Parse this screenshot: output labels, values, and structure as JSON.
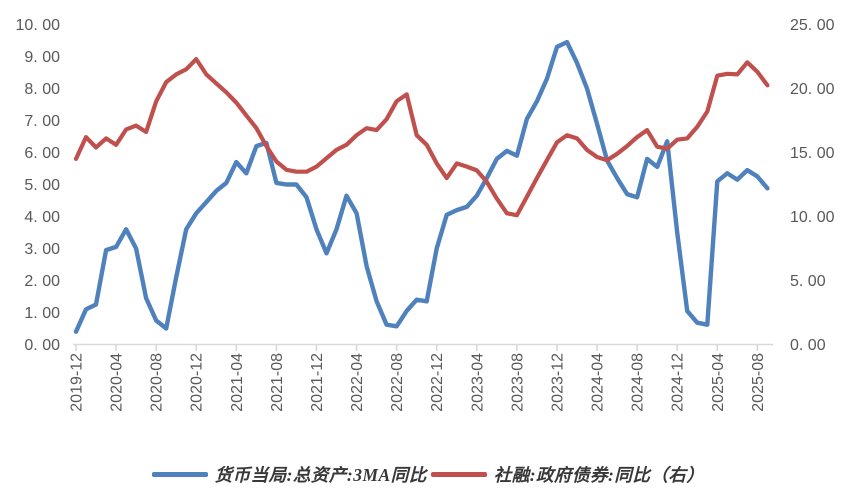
{
  "chart_data": {
    "type": "line",
    "title": "",
    "grid": false,
    "legend_position": "bottom",
    "x": [
      "2019-12",
      "2020-01",
      "2020-02",
      "2020-03",
      "2020-04",
      "2020-05",
      "2020-06",
      "2020-07",
      "2020-08",
      "2020-09",
      "2020-10",
      "2020-11",
      "2020-12",
      "2021-01",
      "2021-02",
      "2021-03",
      "2021-04",
      "2021-05",
      "2021-06",
      "2021-07",
      "2021-08",
      "2021-09",
      "2021-10",
      "2021-11",
      "2021-12",
      "2022-01",
      "2022-02",
      "2022-03",
      "2022-04",
      "2022-05",
      "2022-06",
      "2022-07",
      "2022-08",
      "2022-09",
      "2022-10",
      "2022-11",
      "2022-12",
      "2023-01",
      "2023-02",
      "2023-03",
      "2023-04",
      "2023-05",
      "2023-06",
      "2023-07",
      "2023-08",
      "2023-09",
      "2023-10",
      "2023-11",
      "2023-12",
      "2024-01",
      "2024-02",
      "2024-03",
      "2024-04",
      "2024-05",
      "2024-06",
      "2024-07",
      "2024-08",
      "2024-09",
      "2024-10",
      "2024-11",
      "2024-12",
      "2025-01",
      "2025-02",
      "2025-03",
      "2025-04",
      "2025-05",
      "2025-06",
      "2025-07",
      "2025-08",
      "2025-09"
    ],
    "x_label_every": 4,
    "left_axis": {
      "min": 0,
      "max": 10,
      "step": 1,
      "tick_labels": [
        "0. 00",
        "1. 00",
        "2. 00",
        "3. 00",
        "4. 00",
        "5. 00",
        "6. 00",
        "7. 00",
        "8. 00",
        "9. 00",
        "10. 00"
      ]
    },
    "right_axis": {
      "min": 0,
      "max": 25,
      "step": 5,
      "tick_labels": [
        "0. 00",
        "5. 00",
        "10. 00",
        "15. 00",
        "20. 00",
        "25. 00"
      ]
    },
    "series": [
      {
        "name": "货币当局:总资产:3MA同比",
        "axis": "left",
        "color": "#4F81BD",
        "values": [
          0.4,
          1.1,
          1.25,
          2.95,
          3.05,
          3.6,
          3.0,
          1.45,
          0.75,
          0.5,
          2.1,
          3.6,
          4.1,
          4.45,
          4.8,
          5.05,
          5.7,
          5.35,
          6.2,
          6.3,
          5.05,
          5.0,
          5.0,
          4.6,
          3.6,
          2.85,
          3.6,
          4.65,
          4.1,
          2.45,
          1.35,
          0.62,
          0.57,
          1.05,
          1.4,
          1.35,
          3.0,
          4.05,
          4.2,
          4.3,
          4.65,
          5.2,
          5.8,
          6.05,
          5.9,
          7.05,
          7.6,
          8.3,
          9.3,
          9.45,
          8.8,
          8.0,
          6.9,
          5.75,
          5.2,
          4.7,
          4.6,
          5.8,
          5.55,
          6.35,
          3.5,
          1.05,
          0.68,
          0.62,
          5.1,
          5.35,
          5.15,
          5.45,
          5.25,
          4.88
        ]
      },
      {
        "name": "社融:政府债券:同比（右）",
        "axis": "right",
        "color": "#C0504D",
        "values": [
          14.5,
          16.2,
          15.4,
          16.1,
          15.6,
          16.8,
          17.1,
          16.6,
          19.0,
          20.5,
          21.1,
          21.5,
          22.3,
          21.1,
          20.4,
          19.7,
          18.9,
          17.9,
          16.9,
          15.5,
          14.3,
          13.65,
          13.5,
          13.5,
          13.9,
          14.55,
          15.2,
          15.6,
          16.35,
          16.9,
          16.75,
          17.6,
          19.0,
          19.55,
          16.35,
          15.6,
          14.15,
          13.0,
          14.15,
          13.9,
          13.6,
          12.7,
          11.4,
          10.25,
          10.1,
          11.55,
          13.0,
          14.4,
          15.8,
          16.35,
          16.1,
          15.2,
          14.65,
          14.4,
          14.9,
          15.5,
          16.2,
          16.75,
          15.45,
          15.3,
          16.0,
          16.1,
          17.0,
          18.2,
          21.0,
          21.15,
          21.1,
          22.05,
          21.3,
          20.25
        ]
      }
    ]
  },
  "colors": {
    "axis_label": "#595959",
    "axis_line": "#d9d9d9",
    "background": "#ffffff",
    "legend_text": "#383838"
  }
}
